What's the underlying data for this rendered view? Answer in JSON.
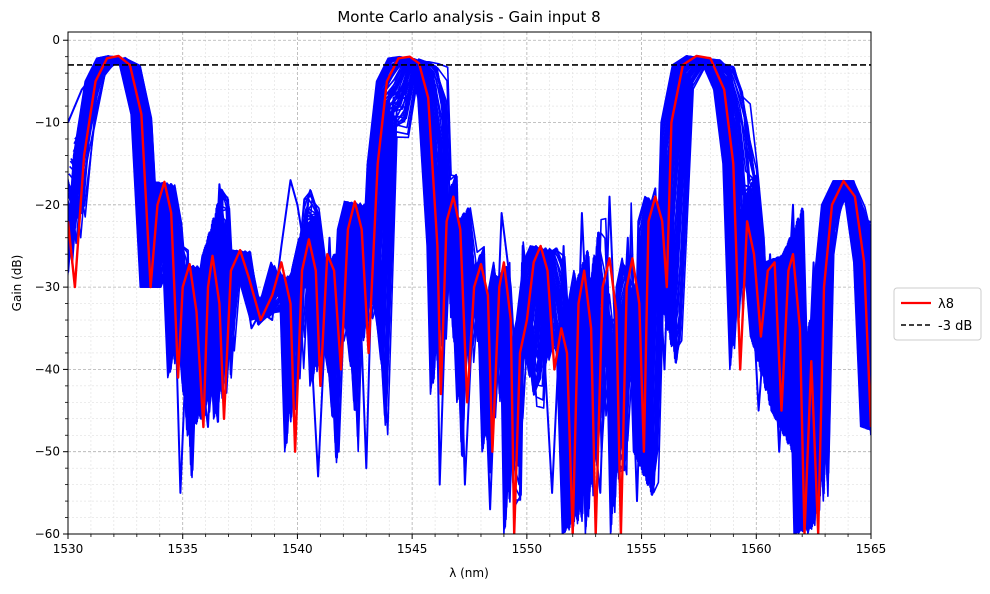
{
  "chart_data": {
    "type": "line",
    "title": "Monte Carlo analysis - Gain input 8",
    "xlabel": "λ (nm)",
    "ylabel": "Gain (dB)",
    "xlim": [
      1530,
      1565
    ],
    "ylim": [
      -60,
      1
    ],
    "xticks": [
      1530,
      1535,
      1540,
      1545,
      1550,
      1555,
      1560,
      1565
    ],
    "yticks": [
      0,
      -10,
      -20,
      -30,
      -40,
      -50,
      -60
    ],
    "grid": true,
    "legend_position": "outside-right",
    "legend": [
      {
        "label": "λ8",
        "color": "#ff0000",
        "style": "solid"
      },
      {
        "label": "-3 dB",
        "color": "#000000",
        "style": "dashed"
      }
    ],
    "reference_line": {
      "y": -3,
      "label": "-3 dB",
      "color": "#000000"
    },
    "monte_carlo_color": "#0000ff",
    "series": [
      {
        "name": "λ8",
        "color": "#ff0000",
        "points": [
          [
            1530.0,
            -22
          ],
          [
            1530.3,
            -30
          ],
          [
            1530.7,
            -14
          ],
          [
            1531.2,
            -5
          ],
          [
            1531.7,
            -2.2
          ],
          [
            1532.2,
            -1.9
          ],
          [
            1532.7,
            -3
          ],
          [
            1533.2,
            -9
          ],
          [
            1533.6,
            -30
          ],
          [
            1533.9,
            -20
          ],
          [
            1534.2,
            -17.2
          ],
          [
            1534.5,
            -21
          ],
          [
            1534.8,
            -41
          ],
          [
            1535.0,
            -30
          ],
          [
            1535.3,
            -27.2
          ],
          [
            1535.6,
            -33
          ],
          [
            1535.9,
            -47
          ],
          [
            1536.1,
            -30
          ],
          [
            1536.3,
            -26.2
          ],
          [
            1536.6,
            -32
          ],
          [
            1536.8,
            -46
          ],
          [
            1537.1,
            -28
          ],
          [
            1537.5,
            -25.5
          ],
          [
            1537.9,
            -29
          ],
          [
            1538.4,
            -34
          ],
          [
            1538.9,
            -31
          ],
          [
            1539.3,
            -27
          ],
          [
            1539.7,
            -32
          ],
          [
            1539.9,
            -50
          ],
          [
            1540.2,
            -28
          ],
          [
            1540.5,
            -24.2
          ],
          [
            1540.8,
            -28
          ],
          [
            1541.0,
            -42
          ],
          [
            1541.3,
            -26
          ],
          [
            1541.6,
            -28
          ],
          [
            1541.9,
            -40
          ],
          [
            1542.2,
            -23
          ],
          [
            1542.5,
            -19.6
          ],
          [
            1542.8,
            -23
          ],
          [
            1543.1,
            -38
          ],
          [
            1543.5,
            -15
          ],
          [
            1543.9,
            -5
          ],
          [
            1544.4,
            -2.2
          ],
          [
            1544.9,
            -2
          ],
          [
            1545.3,
            -2.8
          ],
          [
            1545.7,
            -7
          ],
          [
            1546.1,
            -25
          ],
          [
            1546.25,
            -43
          ],
          [
            1546.5,
            -22
          ],
          [
            1546.8,
            -19
          ],
          [
            1547.1,
            -23
          ],
          [
            1547.4,
            -44
          ],
          [
            1547.7,
            -30
          ],
          [
            1548.0,
            -27.2
          ],
          [
            1548.3,
            -31
          ],
          [
            1548.5,
            -50
          ],
          [
            1548.8,
            -30
          ],
          [
            1549.0,
            -27
          ],
          [
            1549.3,
            -34
          ],
          [
            1549.45,
            -60
          ],
          [
            1549.7,
            -38
          ],
          [
            1550.0,
            -34
          ],
          [
            1550.3,
            -27
          ],
          [
            1550.6,
            -25
          ],
          [
            1550.9,
            -28
          ],
          [
            1551.2,
            -40
          ],
          [
            1551.5,
            -35
          ],
          [
            1551.75,
            -38
          ],
          [
            1552.0,
            -60
          ],
          [
            1552.25,
            -32
          ],
          [
            1552.5,
            -28
          ],
          [
            1552.8,
            -35
          ],
          [
            1553.0,
            -60
          ],
          [
            1553.3,
            -30
          ],
          [
            1553.6,
            -26.5
          ],
          [
            1553.9,
            -33
          ],
          [
            1554.1,
            -60
          ],
          [
            1554.35,
            -30
          ],
          [
            1554.6,
            -26.5
          ],
          [
            1554.9,
            -32
          ],
          [
            1555.1,
            -50
          ],
          [
            1555.3,
            -22
          ],
          [
            1555.6,
            -19
          ],
          [
            1555.9,
            -22
          ],
          [
            1556.1,
            -30
          ],
          [
            1556.3,
            -10
          ],
          [
            1556.8,
            -3
          ],
          [
            1557.4,
            -1.9
          ],
          [
            1558.0,
            -2.2
          ],
          [
            1558.6,
            -6
          ],
          [
            1559.0,
            -15
          ],
          [
            1559.3,
            -40
          ],
          [
            1559.6,
            -22
          ],
          [
            1559.9,
            -26
          ],
          [
            1560.2,
            -36
          ],
          [
            1560.5,
            -28
          ],
          [
            1560.8,
            -27
          ],
          [
            1561.1,
            -45
          ],
          [
            1561.4,
            -28
          ],
          [
            1561.6,
            -26
          ],
          [
            1561.9,
            -35
          ],
          [
            1562.1,
            -60
          ],
          [
            1562.4,
            -39
          ],
          [
            1562.7,
            -60
          ],
          [
            1562.95,
            -30
          ],
          [
            1563.3,
            -20
          ],
          [
            1563.8,
            -17.1
          ],
          [
            1564.3,
            -19
          ],
          [
            1564.7,
            -27
          ],
          [
            1565.0,
            -47
          ]
        ]
      },
      {
        "name": "",
        "color": "#0000ff",
        "points": [
          [
            1530.0,
            -10
          ],
          [
            1530.6,
            -6
          ],
          [
            1531.4,
            -3.2
          ],
          [
            1532.2,
            -2.8
          ],
          [
            1533.0,
            -3.2
          ],
          [
            1533.5,
            -10
          ],
          [
            1533.9,
            -30
          ],
          [
            1534.2,
            -18
          ],
          [
            1534.6,
            -25
          ],
          [
            1534.9,
            -55
          ],
          [
            1535.3,
            -28
          ],
          [
            1535.8,
            -40
          ],
          [
            1536.1,
            -47
          ],
          [
            1536.6,
            -17.5
          ],
          [
            1537.1,
            -30
          ],
          [
            1537.5,
            -26
          ],
          [
            1538.0,
            -35
          ],
          [
            1538.4,
            -33
          ],
          [
            1538.9,
            -34
          ],
          [
            1539.3,
            -25
          ],
          [
            1539.7,
            -17
          ],
          [
            1540.0,
            -20
          ],
          [
            1540.4,
            -27
          ],
          [
            1540.9,
            -53
          ],
          [
            1541.4,
            -24
          ],
          [
            1541.8,
            -50
          ],
          [
            1542.2,
            -20.5
          ],
          [
            1542.6,
            -22
          ],
          [
            1543.0,
            -52
          ],
          [
            1543.4,
            -12
          ],
          [
            1544.0,
            -3
          ],
          [
            1544.8,
            -2.6
          ],
          [
            1545.6,
            -3.2
          ],
          [
            1546.0,
            -16
          ],
          [
            1546.2,
            -54
          ],
          [
            1546.6,
            -20
          ],
          [
            1547.0,
            -25
          ],
          [
            1547.3,
            -54
          ],
          [
            1547.7,
            -30
          ],
          [
            1548.0,
            -27
          ],
          [
            1548.4,
            -57
          ],
          [
            1548.9,
            -21
          ],
          [
            1549.3,
            -30
          ],
          [
            1549.6,
            -45
          ],
          [
            1550.0,
            -26
          ],
          [
            1550.4,
            -25
          ],
          [
            1550.8,
            -40
          ],
          [
            1551.1,
            -55
          ],
          [
            1551.6,
            -25
          ],
          [
            1552.0,
            -58
          ],
          [
            1552.4,
            -21
          ],
          [
            1552.8,
            -45
          ],
          [
            1553.2,
            -55
          ],
          [
            1553.6,
            -19
          ],
          [
            1554.0,
            -46
          ],
          [
            1554.4,
            -24
          ],
          [
            1554.8,
            -56
          ],
          [
            1555.2,
            -22
          ],
          [
            1555.6,
            -18
          ],
          [
            1556.0,
            -40
          ],
          [
            1556.4,
            -6
          ],
          [
            1557.2,
            -2.8
          ],
          [
            1558.0,
            -3
          ],
          [
            1558.8,
            -5
          ],
          [
            1559.3,
            -15
          ],
          [
            1559.7,
            -24
          ],
          [
            1560.1,
            -45
          ],
          [
            1560.6,
            -26
          ],
          [
            1561.0,
            -50
          ],
          [
            1561.6,
            -20
          ],
          [
            1562.0,
            -58
          ],
          [
            1562.5,
            -27
          ],
          [
            1562.9,
            -45
          ],
          [
            1563.4,
            -20
          ],
          [
            1564.0,
            -17.1
          ],
          [
            1564.6,
            -22
          ],
          [
            1565.0,
            -48
          ]
        ]
      }
    ]
  }
}
